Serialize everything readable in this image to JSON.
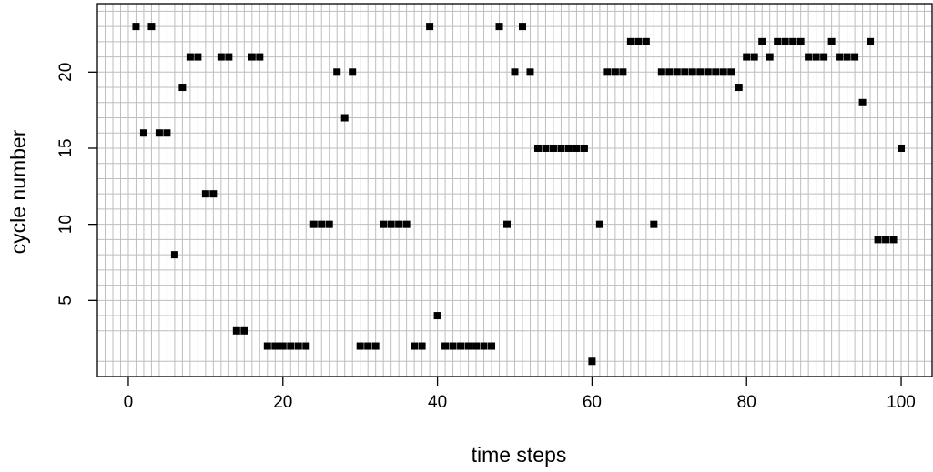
{
  "chart_data": {
    "type": "scatter",
    "title": "",
    "xlabel": "time steps",
    "ylabel": "cycle number",
    "xlim": [
      -4,
      104
    ],
    "ylim": [
      0,
      24.5
    ],
    "xticks": [
      0,
      20,
      40,
      60,
      80,
      100
    ],
    "xtick_labels": [
      "0",
      "20",
      "40",
      "60",
      "80",
      "100"
    ],
    "yticks": [
      5,
      10,
      15,
      20
    ],
    "ytick_labels": [
      "5",
      "10",
      "15",
      "20"
    ],
    "grid": true,
    "grid_x_every": 1,
    "grid_y_every": 1,
    "marker": "filled-square",
    "colors": {
      "point": "#000000",
      "grid": "#bebebe",
      "axis": "#000000",
      "background": "#ffffff"
    },
    "points": [
      {
        "x": 1,
        "y": 23
      },
      {
        "x": 2,
        "y": 16
      },
      {
        "x": 3,
        "y": 23
      },
      {
        "x": 4,
        "y": 16
      },
      {
        "x": 5,
        "y": 16
      },
      {
        "x": 6,
        "y": 8
      },
      {
        "x": 7,
        "y": 19
      },
      {
        "x": 8,
        "y": 21
      },
      {
        "x": 9,
        "y": 21
      },
      {
        "x": 10,
        "y": 12
      },
      {
        "x": 11,
        "y": 12
      },
      {
        "x": 12,
        "y": 21
      },
      {
        "x": 13,
        "y": 21
      },
      {
        "x": 14,
        "y": 3
      },
      {
        "x": 15,
        "y": 3
      },
      {
        "x": 16,
        "y": 21
      },
      {
        "x": 17,
        "y": 21
      },
      {
        "x": 18,
        "y": 2
      },
      {
        "x": 19,
        "y": 2
      },
      {
        "x": 20,
        "y": 2
      },
      {
        "x": 21,
        "y": 2
      },
      {
        "x": 22,
        "y": 2
      },
      {
        "x": 23,
        "y": 2
      },
      {
        "x": 24,
        "y": 10
      },
      {
        "x": 25,
        "y": 10
      },
      {
        "x": 26,
        "y": 10
      },
      {
        "x": 27,
        "y": 20
      },
      {
        "x": 28,
        "y": 17
      },
      {
        "x": 29,
        "y": 20
      },
      {
        "x": 30,
        "y": 2
      },
      {
        "x": 31,
        "y": 2
      },
      {
        "x": 32,
        "y": 2
      },
      {
        "x": 33,
        "y": 10
      },
      {
        "x": 34,
        "y": 10
      },
      {
        "x": 35,
        "y": 10
      },
      {
        "x": 36,
        "y": 10
      },
      {
        "x": 37,
        "y": 2
      },
      {
        "x": 38,
        "y": 2
      },
      {
        "x": 39,
        "y": 23
      },
      {
        "x": 40,
        "y": 4
      },
      {
        "x": 41,
        "y": 2
      },
      {
        "x": 42,
        "y": 2
      },
      {
        "x": 43,
        "y": 2
      },
      {
        "x": 44,
        "y": 2
      },
      {
        "x": 45,
        "y": 2
      },
      {
        "x": 46,
        "y": 2
      },
      {
        "x": 47,
        "y": 2
      },
      {
        "x": 48,
        "y": 23
      },
      {
        "x": 49,
        "y": 10
      },
      {
        "x": 50,
        "y": 20
      },
      {
        "x": 51,
        "y": 23
      },
      {
        "x": 52,
        "y": 20
      },
      {
        "x": 53,
        "y": 15
      },
      {
        "x": 54,
        "y": 15
      },
      {
        "x": 55,
        "y": 15
      },
      {
        "x": 56,
        "y": 15
      },
      {
        "x": 57,
        "y": 15
      },
      {
        "x": 58,
        "y": 15
      },
      {
        "x": 59,
        "y": 15
      },
      {
        "x": 60,
        "y": 1
      },
      {
        "x": 61,
        "y": 10
      },
      {
        "x": 62,
        "y": 20
      },
      {
        "x": 63,
        "y": 20
      },
      {
        "x": 64,
        "y": 20
      },
      {
        "x": 65,
        "y": 22
      },
      {
        "x": 66,
        "y": 22
      },
      {
        "x": 67,
        "y": 22
      },
      {
        "x": 68,
        "y": 10
      },
      {
        "x": 69,
        "y": 20
      },
      {
        "x": 70,
        "y": 20
      },
      {
        "x": 71,
        "y": 20
      },
      {
        "x": 72,
        "y": 20
      },
      {
        "x": 73,
        "y": 20
      },
      {
        "x": 74,
        "y": 20
      },
      {
        "x": 75,
        "y": 20
      },
      {
        "x": 76,
        "y": 20
      },
      {
        "x": 77,
        "y": 20
      },
      {
        "x": 78,
        "y": 20
      },
      {
        "x": 79,
        "y": 19
      },
      {
        "x": 80,
        "y": 21
      },
      {
        "x": 81,
        "y": 21
      },
      {
        "x": 82,
        "y": 22
      },
      {
        "x": 83,
        "y": 21
      },
      {
        "x": 84,
        "y": 22
      },
      {
        "x": 85,
        "y": 22
      },
      {
        "x": 86,
        "y": 22
      },
      {
        "x": 87,
        "y": 22
      },
      {
        "x": 88,
        "y": 21
      },
      {
        "x": 89,
        "y": 21
      },
      {
        "x": 90,
        "y": 21
      },
      {
        "x": 91,
        "y": 22
      },
      {
        "x": 92,
        "y": 21
      },
      {
        "x": 93,
        "y": 21
      },
      {
        "x": 94,
        "y": 21
      },
      {
        "x": 95,
        "y": 18
      },
      {
        "x": 96,
        "y": 22
      },
      {
        "x": 97,
        "y": 9
      },
      {
        "x": 98,
        "y": 9
      },
      {
        "x": 99,
        "y": 9
      },
      {
        "x": 100,
        "y": 15
      }
    ]
  }
}
